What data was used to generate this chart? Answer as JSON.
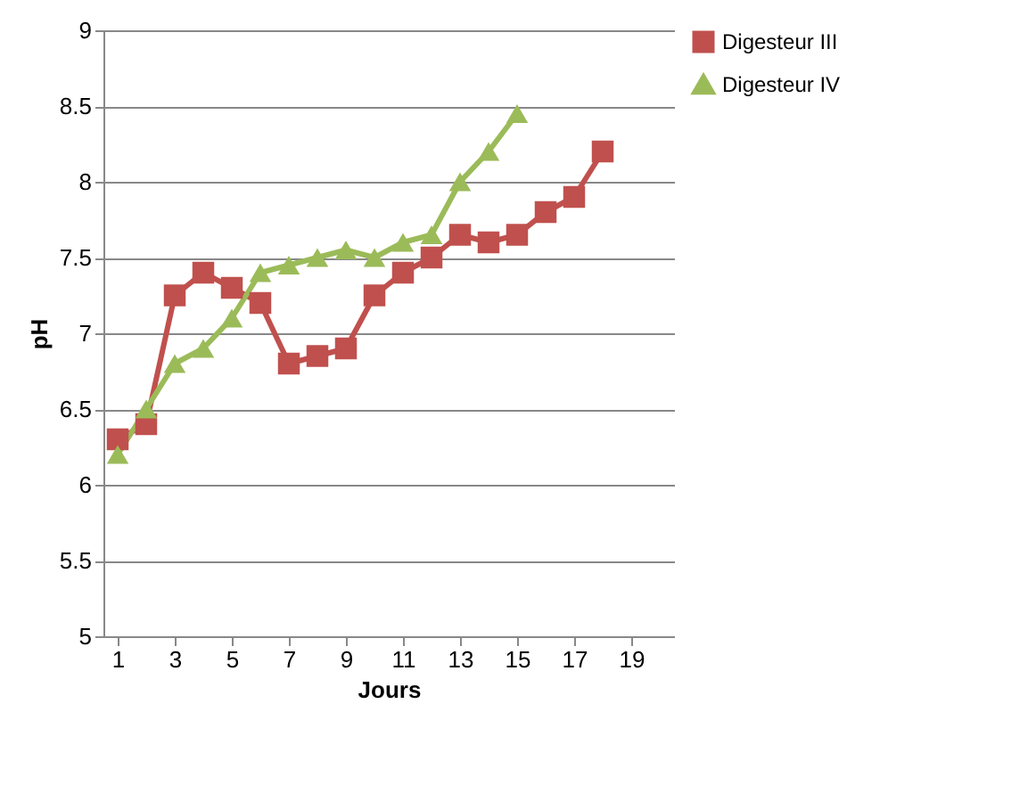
{
  "chart_data": {
    "type": "line",
    "xlabel": "Jours",
    "ylabel": "pH",
    "x": [
      1,
      2,
      3,
      4,
      5,
      6,
      7,
      8,
      9,
      10,
      11,
      12,
      13,
      14,
      15,
      16,
      17,
      18
    ],
    "xlim": [
      0.5,
      20.5
    ],
    "xticks": [
      1,
      3,
      5,
      7,
      9,
      11,
      13,
      15,
      17,
      19
    ],
    "ylim": [
      5,
      9
    ],
    "yticks": [
      5,
      5.5,
      6,
      6.5,
      7,
      7.5,
      8,
      8.5,
      9
    ],
    "grid": "y",
    "legend": "right",
    "series": [
      {
        "name": "Digesteur III",
        "color": "#c0504d",
        "marker": "square",
        "values": [
          6.3,
          6.4,
          7.25,
          7.4,
          7.3,
          7.2,
          6.8,
          6.85,
          6.9,
          7.25,
          7.4,
          7.5,
          7.65,
          7.6,
          7.65,
          7.8,
          7.9,
          8.2
        ]
      },
      {
        "name": "Digesteur IV",
        "color": "#9bbb59",
        "marker": "triangle",
        "x": [
          1,
          2,
          3,
          4,
          5,
          6,
          7,
          8,
          9,
          10,
          11,
          12,
          13,
          14,
          15
        ],
        "values": [
          6.2,
          6.5,
          6.8,
          6.9,
          7.1,
          7.4,
          7.45,
          7.5,
          7.55,
          7.5,
          7.6,
          7.65,
          8.0,
          8.2,
          8.45
        ]
      }
    ]
  }
}
